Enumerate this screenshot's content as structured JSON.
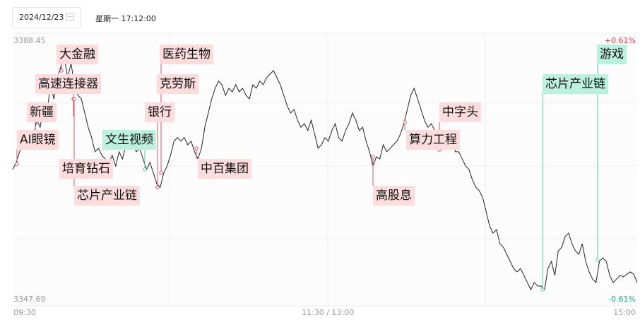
{
  "header": {
    "date": "2024/12/23",
    "weekday_time": "星期一 17:12:00"
  },
  "axis": {
    "max": "3388.45",
    "min": "3347.69",
    "max_pct": "+0.61%",
    "min_pct": "-0.61%",
    "x_ticks": [
      "09:30",
      "11:30 / 13:00",
      "15:00"
    ]
  },
  "colors": {
    "up": "#e8384f",
    "down": "#1fa97d",
    "red_tag": "#fcdcdc",
    "green_tag": "#bdf1df",
    "line": "#222222"
  },
  "chart_data": {
    "type": "line",
    "ylim_pct": [
      -0.61,
      0.61
    ],
    "ylim": [
      3347.69,
      3388.45
    ],
    "values_pct": [
      -0.017,
      0.017,
      0.068,
      0.119,
      0.153,
      0.085,
      0.136,
      0.22,
      0.186,
      0.288,
      0.254,
      0.39,
      0.322,
      0.424,
      0.475,
      0.525,
      0.424,
      0.492,
      0.39,
      0.339,
      0.322,
      0.254,
      0.186,
      0.136,
      0.068,
      0.085,
      0.051,
      0.034,
      0.017,
      0.051,
      0,
      0.068,
      0.034,
      0.102,
      0.136,
      0.119,
      0.068,
      0.085,
      0.034,
      -0.017,
      0.017,
      -0.034,
      -0.085,
      -0.102,
      -0.034,
      0,
      0.051,
      0.119,
      0.136,
      0.119,
      0.136,
      0.102,
      0.119,
      0.068,
      0.034,
      0.085,
      0.186,
      0.254,
      0.322,
      0.373,
      0.407,
      0.39,
      0.339,
      0.373,
      0.356,
      0.39,
      0.356,
      0.373,
      0.339,
      0.322,
      0.39,
      0.373,
      0.407,
      0.39,
      0.424,
      0.441,
      0.458,
      0.424,
      0.39,
      0.339,
      0.288,
      0.254,
      0.271,
      0.22,
      0.186,
      0.203,
      0.17,
      0.22,
      0.153,
      0.085,
      0.102,
      0.136,
      0.119,
      0.17,
      0.203,
      0.136,
      0.119,
      0.17,
      0.203,
      0.254,
      0.22,
      0.17,
      0.186,
      0.119,
      0.068,
      0,
      0.044,
      0.034,
      0.102,
      0.068,
      0.085,
      0.102,
      0.119,
      0.153,
      0.203,
      0.271,
      0.339,
      0.373,
      0.322,
      0.271,
      0.22,
      0.186,
      0.203,
      0.17,
      0.136,
      0.085,
      0.102,
      0.119,
      0.136,
      0.068,
      0.068,
      0.034,
      0,
      -0.017,
      -0.068,
      -0.102,
      -0.119,
      -0.153,
      -0.22,
      -0.288,
      -0.322,
      -0.305,
      -0.373,
      -0.39,
      -0.424,
      -0.458,
      -0.492,
      -0.508,
      -0.492,
      -0.525,
      -0.559,
      -0.593,
      -0.559,
      -0.576,
      -0.576,
      -0.593,
      -0.492,
      -0.458,
      -0.525,
      -0.407,
      -0.39,
      -0.339,
      -0.322,
      -0.373,
      -0.407,
      -0.424,
      -0.373,
      -0.458,
      -0.508,
      -0.542,
      -0.559,
      -0.458,
      -0.441,
      -0.458,
      -0.525,
      -0.559,
      -0.542,
      -0.525,
      -0.532,
      -0.519,
      -0.508,
      -0.519,
      -0.559
    ]
  },
  "tags": [
    {
      "text": "大金融",
      "type": "red"
    },
    {
      "text": "高速连接器",
      "type": "red"
    },
    {
      "text": "新疆",
      "type": "red"
    },
    {
      "text": "AI眼镜",
      "type": "red"
    },
    {
      "text": "培育钻石",
      "type": "red"
    },
    {
      "text": "芯片产业链",
      "type": "red"
    },
    {
      "text": "医药生物",
      "type": "red"
    },
    {
      "text": "克劳斯",
      "type": "red"
    },
    {
      "text": "银行",
      "type": "red"
    },
    {
      "text": "文生视频",
      "type": "green"
    },
    {
      "text": "中百集团",
      "type": "red"
    },
    {
      "text": "高股息",
      "type": "red"
    },
    {
      "text": "算力工程",
      "type": "red"
    },
    {
      "text": "中字头",
      "type": "red"
    },
    {
      "text": "芯片产业链",
      "type": "green"
    },
    {
      "text": "游戏",
      "type": "green"
    }
  ]
}
